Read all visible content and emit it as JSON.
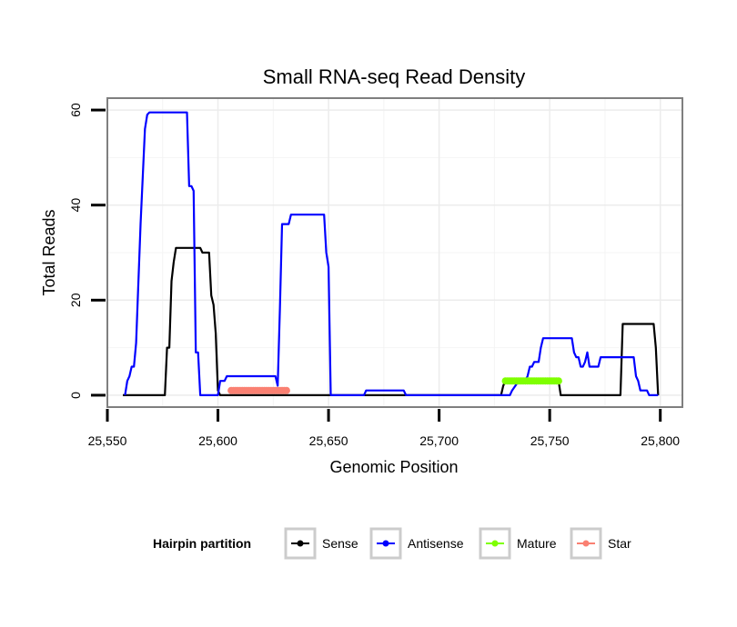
{
  "chart_data": {
    "type": "line",
    "title": "Small RNA-seq Read Density",
    "xlabel": "Genomic Position",
    "ylabel": "Total Reads",
    "xlim": [
      25550,
      25810
    ],
    "ylim": [
      -2.5,
      62.5
    ],
    "x_ticks": [
      25550,
      25600,
      25650,
      25700,
      25750,
      25800
    ],
    "x_tick_labels": [
      "25,550",
      "25,600",
      "25,650",
      "25,700",
      "25,750",
      "25,800"
    ],
    "y_ticks": [
      0,
      20,
      40,
      60
    ],
    "y_tick_labels": [
      "0",
      "20",
      "40",
      "60"
    ],
    "grid": true,
    "legend_title": "Hairpin partition",
    "legend_position": "bottom",
    "series": [
      {
        "name": "Sense",
        "color": "#000000",
        "style": "line",
        "points": [
          [
            25557,
            0
          ],
          [
            25576,
            0
          ],
          [
            25577,
            10
          ],
          [
            25578,
            10
          ],
          [
            25579,
            24
          ],
          [
            25580,
            28
          ],
          [
            25581,
            31
          ],
          [
            25592,
            31
          ],
          [
            25593,
            30
          ],
          [
            25596,
            30
          ],
          [
            25597,
            21
          ],
          [
            25598,
            19
          ],
          [
            25599,
            13
          ],
          [
            25600,
            1
          ],
          [
            25601,
            0
          ],
          [
            25728,
            0
          ],
          [
            25729,
            2
          ],
          [
            25730,
            3
          ],
          [
            25754,
            3
          ],
          [
            25755,
            0
          ],
          [
            25782,
            0
          ],
          [
            25783,
            15
          ],
          [
            25797,
            15
          ],
          [
            25798,
            10
          ],
          [
            25799,
            0
          ]
        ]
      },
      {
        "name": "Antisense",
        "color": "#0000ff",
        "style": "line",
        "points": [
          [
            25558,
            0
          ],
          [
            25559,
            3
          ],
          [
            25560,
            4
          ],
          [
            25561,
            6
          ],
          [
            25562,
            6
          ],
          [
            25563,
            11
          ],
          [
            25565,
            36
          ],
          [
            25566,
            46
          ],
          [
            25567,
            56
          ],
          [
            25568,
            59
          ],
          [
            25569,
            59.5
          ],
          [
            25586,
            59.5
          ],
          [
            25587,
            44
          ],
          [
            25588,
            44
          ],
          [
            25589,
            43
          ],
          [
            25590,
            9
          ],
          [
            25591,
            9
          ],
          [
            25592,
            0
          ],
          [
            25600,
            0
          ],
          [
            25601,
            3
          ],
          [
            25603,
            3
          ],
          [
            25604,
            4
          ],
          [
            25626,
            4
          ],
          [
            25627,
            2
          ],
          [
            25628,
            18
          ],
          [
            25629,
            36
          ],
          [
            25632,
            36
          ],
          [
            25633,
            38
          ],
          [
            25648,
            38
          ],
          [
            25649,
            30
          ],
          [
            25650,
            27
          ],
          [
            25651,
            0
          ],
          [
            25666,
            0
          ],
          [
            25667,
            1
          ],
          [
            25684,
            1
          ],
          [
            25685,
            0
          ],
          [
            25732,
            0
          ],
          [
            25733,
            1
          ],
          [
            25736,
            3
          ],
          [
            25739,
            3
          ],
          [
            25740,
            4
          ],
          [
            25741,
            6
          ],
          [
            25742,
            6
          ],
          [
            25743,
            7
          ],
          [
            25745,
            7
          ],
          [
            25746,
            10
          ],
          [
            25747,
            12
          ],
          [
            25760,
            12
          ],
          [
            25761,
            9
          ],
          [
            25762,
            8
          ],
          [
            25763,
            8
          ],
          [
            25764,
            6
          ],
          [
            25765,
            6
          ],
          [
            25766,
            7
          ],
          [
            25767,
            9
          ],
          [
            25768,
            6
          ],
          [
            25772,
            6
          ],
          [
            25773,
            8
          ],
          [
            25788,
            8
          ],
          [
            25789,
            4
          ],
          [
            25790,
            3
          ],
          [
            25791,
            1
          ],
          [
            25794,
            1
          ],
          [
            25795,
            0
          ],
          [
            25799,
            0
          ]
        ]
      },
      {
        "name": "Mature",
        "color": "#7fff00",
        "style": "points",
        "points": [
          [
            25730,
            3
          ],
          [
            25731,
            3
          ],
          [
            25732,
            3
          ],
          [
            25733,
            3
          ],
          [
            25734,
            3
          ],
          [
            25735,
            3
          ],
          [
            25736,
            3
          ],
          [
            25737,
            3
          ],
          [
            25738,
            3
          ],
          [
            25739,
            3
          ],
          [
            25740,
            3
          ],
          [
            25741,
            3
          ],
          [
            25742,
            3
          ],
          [
            25743,
            3
          ],
          [
            25744,
            3
          ],
          [
            25745,
            3
          ],
          [
            25746,
            3
          ],
          [
            25747,
            3
          ],
          [
            25748,
            3
          ],
          [
            25749,
            3
          ],
          [
            25750,
            3
          ],
          [
            25751,
            3
          ],
          [
            25752,
            3
          ],
          [
            25753,
            3
          ],
          [
            25754,
            3
          ]
        ]
      },
      {
        "name": "Star",
        "color": "#fa8072",
        "style": "points",
        "points": [
          [
            25606,
            1
          ],
          [
            25607,
            1
          ],
          [
            25608,
            1
          ],
          [
            25609,
            1
          ],
          [
            25610,
            1
          ],
          [
            25611,
            1
          ],
          [
            25612,
            1
          ],
          [
            25613,
            1
          ],
          [
            25614,
            1
          ],
          [
            25615,
            1
          ],
          [
            25616,
            1
          ],
          [
            25617,
            1
          ],
          [
            25618,
            1
          ],
          [
            25619,
            1
          ],
          [
            25620,
            1
          ],
          [
            25621,
            1
          ],
          [
            25622,
            1
          ],
          [
            25623,
            1
          ],
          [
            25624,
            1
          ],
          [
            25625,
            1
          ],
          [
            25626,
            1
          ],
          [
            25627,
            1
          ],
          [
            25628,
            1
          ],
          [
            25629,
            1
          ],
          [
            25630,
            1
          ],
          [
            25631,
            1
          ]
        ]
      }
    ]
  }
}
